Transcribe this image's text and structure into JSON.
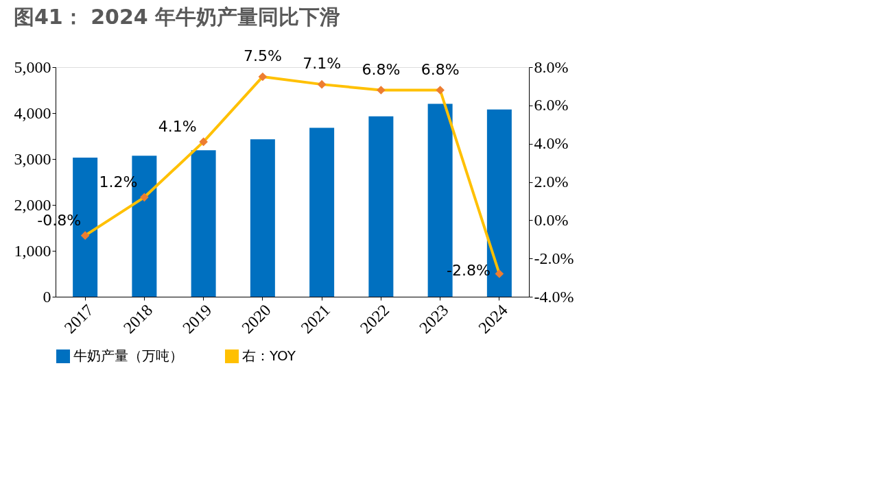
{
  "chart_data": {
    "type": "bar",
    "title": "图41：  2024 年牛奶产量同比下滑",
    "categories": [
      "2017",
      "2018",
      "2019",
      "2020",
      "2021",
      "2022",
      "2023",
      "2024"
    ],
    "series": [
      {
        "name": "牛奶产量（万吨）",
        "color": "#0070c0",
        "values": [
          3030,
          3070,
          3190,
          3430,
          3680,
          3930,
          4200,
          4080
        ]
      },
      {
        "name": "右：YOY",
        "type": "line",
        "axis": "y2",
        "color": "#ffc000",
        "marker": "diamond",
        "colors": [
          "#ed7d31",
          "#ed7d31",
          "#ed7d31",
          "#ed7d31",
          "#ed7d31",
          "#ed7d31",
          "#ed7d31",
          "#ed7d31"
        ],
        "line_style": "solid",
        "values": [
          -0.8,
          1.2,
          4.1,
          7.5,
          7.1,
          6.8,
          6.8,
          -2.8
        ],
        "value_labels": [
          "-0.8%",
          "1.2%",
          "4.1%",
          "7.5%",
          "7.1%",
          "6.8%",
          "6.8%",
          "-2.8%"
        ]
      }
    ],
    "ylim": [
      0,
      5000
    ],
    "yticks": [
      0,
      {
        "value": 1000,
        "label": "1,000"
      },
      {
        "value": 2000,
        "label": "2,000"
      },
      {
        "value": 3000,
        "label": "3,000"
      },
      {
        "value": 4000,
        "label": "4,000"
      },
      {
        "value": 5000,
        "label": "5,000"
      }
    ],
    "y2lim": [
      -4,
      8
    ],
    "y2ticks": [
      {
        "value": -4,
        "label": "-4.0%"
      },
      {
        "value": -2,
        "label": "-2.0%"
      },
      {
        "value": 0,
        "label": "0.0%"
      },
      {
        "value": 2,
        "label": "2.0%"
      },
      {
        "value": 4,
        "label": "4.0%"
      },
      {
        "value": 6,
        "label": "6.0%"
      },
      {
        "value": 8,
        "label": "8.0%"
      }
    ],
    "grid": false,
    "legend": "bottom"
  }
}
